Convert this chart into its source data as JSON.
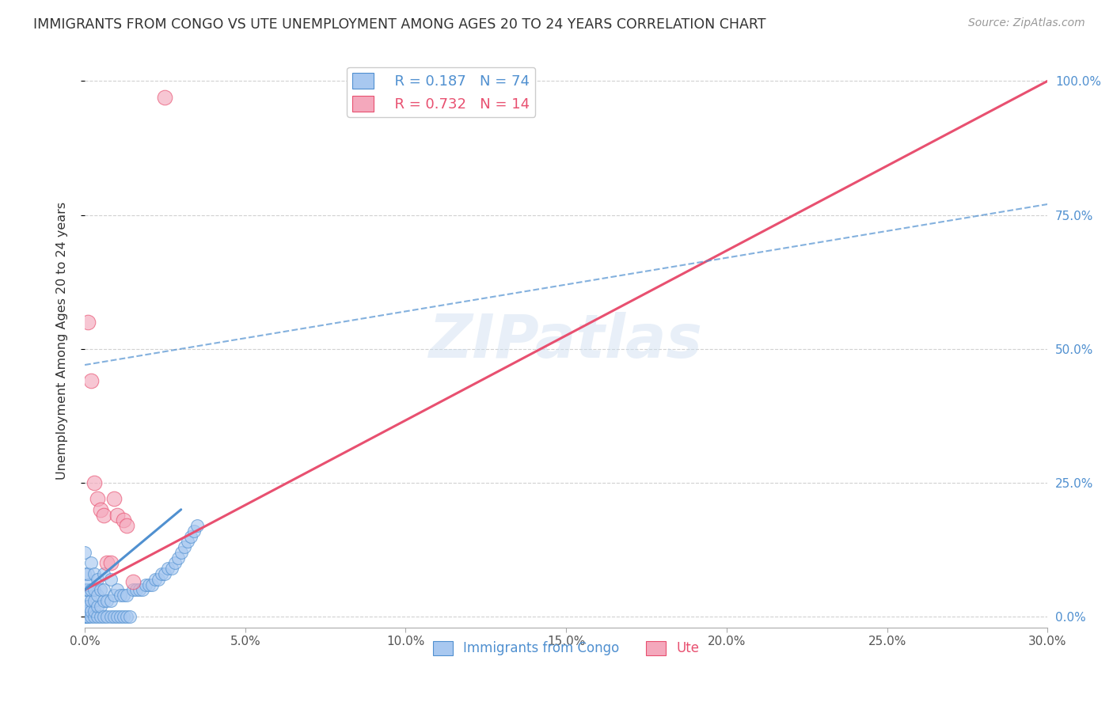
{
  "title": "IMMIGRANTS FROM CONGO VS UTE UNEMPLOYMENT AMONG AGES 20 TO 24 YEARS CORRELATION CHART",
  "source": "Source: ZipAtlas.com",
  "xlim": [
    0.0,
    0.3
  ],
  "ylim": [
    -0.02,
    1.05
  ],
  "ylabel": "Unemployment Among Ages 20 to 24 years",
  "legend_blue_r": "R = 0.187",
  "legend_blue_n": "N = 74",
  "legend_pink_r": "R = 0.732",
  "legend_pink_n": "N = 14",
  "watermark": "ZIPatlas",
  "blue_color": "#a8c8f0",
  "pink_color": "#f4a8bc",
  "blue_line_color": "#5090d0",
  "pink_line_color": "#e85070",
  "blue_scatter_x": [
    0.0,
    0.0,
    0.0,
    0.0,
    0.0,
    0.0,
    0.0,
    0.0,
    0.0,
    0.001,
    0.001,
    0.001,
    0.001,
    0.001,
    0.001,
    0.001,
    0.002,
    0.002,
    0.002,
    0.002,
    0.002,
    0.003,
    0.003,
    0.003,
    0.003,
    0.003,
    0.004,
    0.004,
    0.004,
    0.004,
    0.005,
    0.005,
    0.005,
    0.006,
    0.006,
    0.006,
    0.006,
    0.007,
    0.007,
    0.008,
    0.008,
    0.008,
    0.009,
    0.009,
    0.01,
    0.01,
    0.011,
    0.011,
    0.012,
    0.012,
    0.013,
    0.013,
    0.014,
    0.015,
    0.016,
    0.017,
    0.018,
    0.019,
    0.02,
    0.021,
    0.022,
    0.023,
    0.024,
    0.025,
    0.026,
    0.027,
    0.028,
    0.029,
    0.03,
    0.031,
    0.032,
    0.033,
    0.034,
    0.035
  ],
  "blue_scatter_y": [
    0.0,
    0.0,
    0.0,
    0.01,
    0.02,
    0.03,
    0.05,
    0.08,
    0.12,
    0.0,
    0.0,
    0.01,
    0.02,
    0.05,
    0.06,
    0.08,
    0.0,
    0.01,
    0.03,
    0.05,
    0.1,
    0.0,
    0.01,
    0.03,
    0.05,
    0.08,
    0.0,
    0.02,
    0.04,
    0.07,
    0.0,
    0.02,
    0.05,
    0.0,
    0.03,
    0.05,
    0.08,
    0.0,
    0.03,
    0.0,
    0.03,
    0.07,
    0.0,
    0.04,
    0.0,
    0.05,
    0.0,
    0.04,
    0.0,
    0.04,
    0.0,
    0.04,
    0.0,
    0.05,
    0.05,
    0.05,
    0.05,
    0.06,
    0.06,
    0.06,
    0.07,
    0.07,
    0.08,
    0.08,
    0.09,
    0.09,
    0.1,
    0.11,
    0.12,
    0.13,
    0.14,
    0.15,
    0.16,
    0.17
  ],
  "pink_scatter_x": [
    0.001,
    0.002,
    0.003,
    0.004,
    0.005,
    0.006,
    0.007,
    0.008,
    0.009,
    0.01,
    0.012,
    0.013,
    0.015,
    0.025
  ],
  "pink_scatter_y": [
    0.55,
    0.44,
    0.25,
    0.22,
    0.2,
    0.19,
    0.1,
    0.1,
    0.22,
    0.19,
    0.18,
    0.17,
    0.065,
    0.97
  ],
  "pink_line_x": [
    0.0,
    0.3
  ],
  "pink_line_y": [
    0.05,
    1.0
  ],
  "blue_solid_line_x": [
    0.0,
    0.03
  ],
  "blue_solid_line_y": [
    0.05,
    0.2
  ],
  "blue_dash_line_x": [
    0.0,
    0.3
  ],
  "blue_dash_line_y": [
    0.47,
    0.77
  ]
}
